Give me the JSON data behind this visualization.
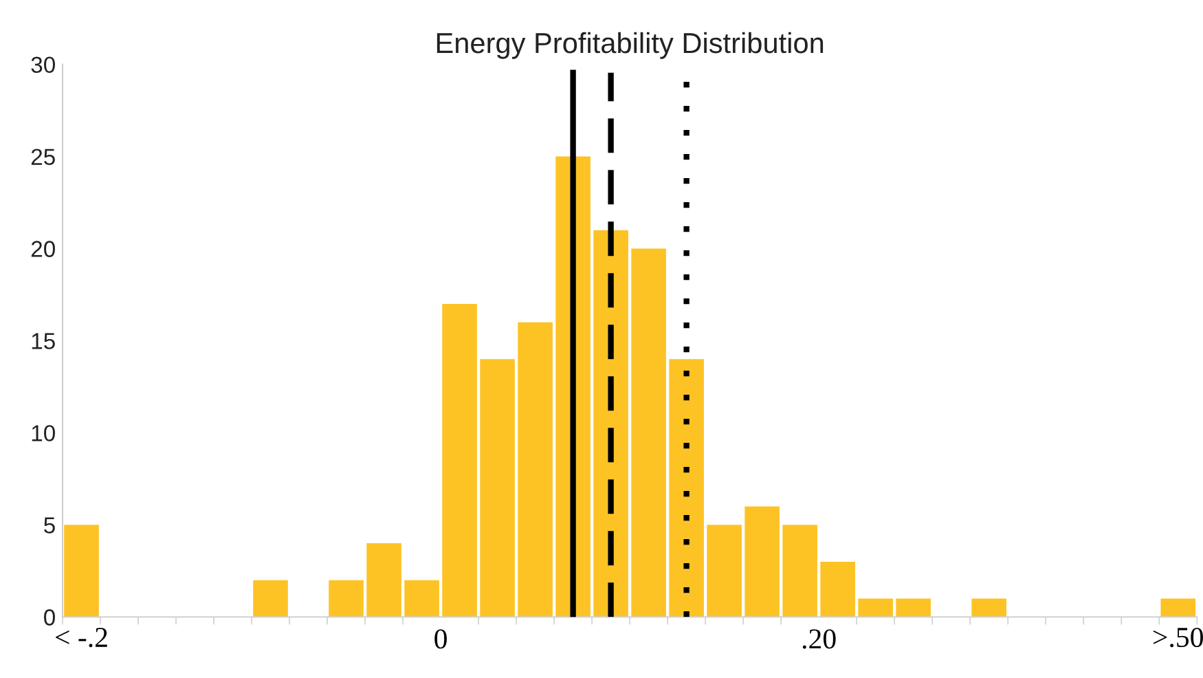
{
  "chart_data": {
    "type": "histogram",
    "title": "Energy Profitability Distribution",
    "bins": [
      -0.2,
      -0.18,
      -0.16,
      -0.14,
      -0.12,
      -0.1,
      -0.08,
      -0.06,
      -0.04,
      -0.02,
      0,
      0.02,
      0.04,
      0.06,
      0.08,
      0.1,
      0.12,
      0.14,
      0.16,
      0.18,
      0.2,
      0.22,
      0.24,
      0.26,
      0.28,
      0.3,
      0.32,
      0.34,
      0.36,
      0.38,
      0.4
    ],
    "values": [
      5,
      0,
      0,
      0,
      0,
      2,
      0,
      2,
      4,
      2,
      17,
      14,
      16,
      25,
      21,
      20,
      14,
      5,
      6,
      5,
      3,
      1,
      1,
      0,
      1,
      0,
      0,
      0,
      0,
      1
    ],
    "color": "#fdc325",
    "xlim": [
      -0.2,
      0.4
    ],
    "xticks": [
      {
        "value": 0,
        "label": "0"
      },
      {
        "value": 0.2,
        "label": ".20"
      }
    ],
    "annotations": [
      "< -.2",
      ">.50"
    ],
    "ylim": [
      0,
      30
    ],
    "yticks": [
      0,
      5,
      10,
      15,
      20,
      25,
      30
    ],
    "ref_lines": [
      {
        "axis": "x",
        "value": 0.07,
        "line_style": "solid",
        "color": "#000000"
      },
      {
        "axis": "x",
        "value": 0.09,
        "line_style": "dashed",
        "color": "#000000"
      },
      {
        "axis": "x",
        "value": 0.13,
        "line_style": "dotted",
        "color": "#000000"
      }
    ]
  }
}
